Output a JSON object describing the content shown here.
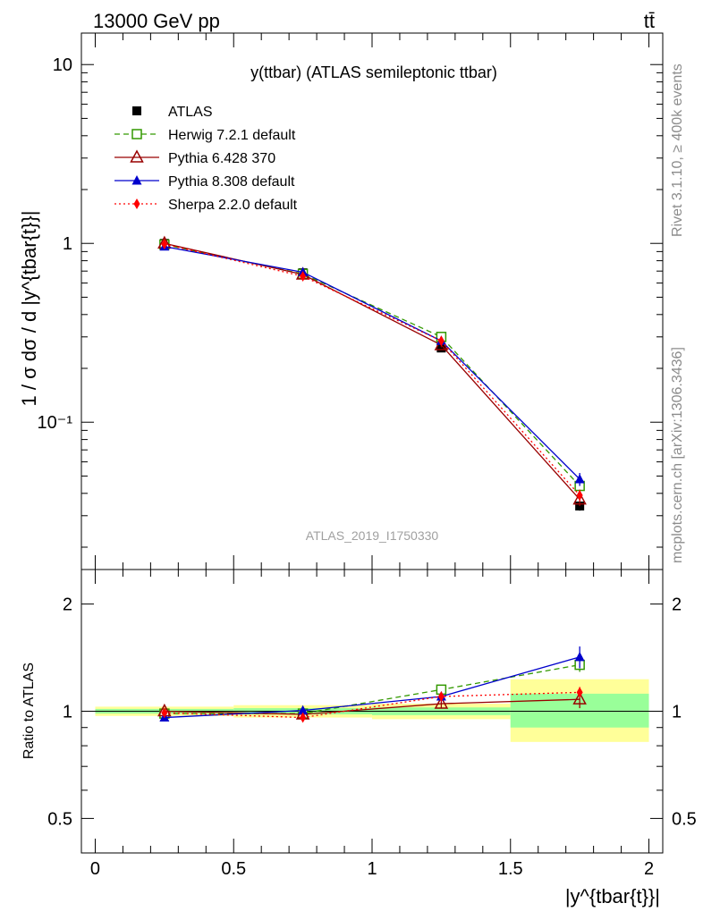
{
  "header": {
    "energy": "13000 GeV pp",
    "process": "tt̄"
  },
  "side": {
    "rivet": "Rivet 3.1.10, ≥ 400k events",
    "mcplots": "mcplots.cern.ch [arXiv:1306.3436]"
  },
  "chart_data": [
    {
      "type": "line",
      "title": "y(ttbar) (ATLAS semileptonic ttbar)",
      "ylabel": "1 / σ dσ / d |y^{tbar{t}}|",
      "xlabel": "|y^{tbar{t}}|",
      "watermark": "ATLAS_2019_I1750330",
      "yscale": "log",
      "ylim": [
        0.015,
        15
      ],
      "xlim": [
        -0.05,
        2.05
      ],
      "y_ticks": [
        {
          "value": 10,
          "label": "10"
        },
        {
          "value": 1,
          "label": "1"
        },
        {
          "value": 0.1,
          "label": "10⁻¹"
        }
      ],
      "x": [
        0.25,
        0.75,
        1.25,
        1.75
      ],
      "series": [
        {
          "name": "ATLAS",
          "color": "#000000",
          "style": "solid",
          "marker": "square-filled",
          "values": [
            1.0,
            0.685,
            0.26,
            0.034
          ],
          "errors": [
            0.03,
            0.02,
            0.012,
            0.002
          ]
        },
        {
          "name": "Herwig 7.2.1 default",
          "color": "#339900",
          "style": "dashed",
          "marker": "square-open",
          "values": [
            0.985,
            0.675,
            0.3,
            0.044
          ],
          "errors": [
            0.01,
            0.01,
            0.008,
            0.003
          ]
        },
        {
          "name": "Pythia 6.428 370",
          "color": "#990000",
          "style": "solid",
          "marker": "triangle-open",
          "values": [
            1.0,
            0.67,
            0.27,
            0.037
          ],
          "errors": [
            0.01,
            0.01,
            0.008,
            0.003
          ]
        },
        {
          "name": "Pythia 8.308 default",
          "color": "#0000cc",
          "style": "solid",
          "marker": "triangle-filled",
          "values": [
            0.96,
            0.69,
            0.285,
            0.048
          ],
          "errors": [
            0.01,
            0.01,
            0.008,
            0.004
          ]
        },
        {
          "name": "Sherpa 2.2.0 default",
          "color": "#ff0000",
          "style": "dotted",
          "marker": "diamond-filled",
          "values": [
            0.99,
            0.655,
            0.285,
            0.039
          ],
          "errors": [
            0.01,
            0.01,
            0.008,
            0.003
          ]
        }
      ]
    },
    {
      "type": "line",
      "ylabel": "Ratio to ATLAS",
      "xlabel": "|y^{tbar{t}}|",
      "yscale": "log",
      "ylim": [
        0.4,
        2.5
      ],
      "xlim": [
        -0.05,
        2.05
      ],
      "y_ticks": [
        {
          "value": 2,
          "label": "2"
        },
        {
          "value": 1,
          "label": "1"
        },
        {
          "value": 0.5,
          "label": "0.5"
        }
      ],
      "x_ticks": [
        {
          "value": 0,
          "label": "0"
        },
        {
          "value": 0.5,
          "label": "0.5"
        },
        {
          "value": 1,
          "label": "1"
        },
        {
          "value": 1.5,
          "label": "1.5"
        },
        {
          "value": 2,
          "label": "2"
        }
      ],
      "x": [
        0.25,
        0.75,
        1.25,
        1.75
      ],
      "bands": [
        {
          "x0": 0,
          "x1": 0.5,
          "stat": [
            0.985,
            1.015
          ],
          "total": [
            0.97,
            1.03
          ]
        },
        {
          "x0": 0.5,
          "x1": 1.0,
          "stat": [
            0.98,
            1.02
          ],
          "total": [
            0.96,
            1.04
          ]
        },
        {
          "x0": 1.0,
          "x1": 1.5,
          "stat": [
            0.975,
            1.025
          ],
          "total": [
            0.95,
            1.05
          ]
        },
        {
          "x0": 1.5,
          "x1": 2.0,
          "stat": [
            0.9,
            1.12
          ],
          "total": [
            0.82,
            1.23
          ]
        }
      ],
      "series": [
        {
          "name": "Herwig 7.2.1 default",
          "color": "#339900",
          "style": "dashed",
          "marker": "square-open",
          "values": [
            0.985,
            0.985,
            1.15,
            1.35
          ],
          "errors": [
            0.01,
            0.015,
            0.03,
            0.06
          ]
        },
        {
          "name": "Pythia 6.428 370",
          "color": "#990000",
          "style": "solid",
          "marker": "triangle-open",
          "values": [
            1.0,
            0.98,
            1.05,
            1.08
          ],
          "errors": [
            0.01,
            0.015,
            0.03,
            0.06
          ]
        },
        {
          "name": "Pythia 8.308 default",
          "color": "#0000cc",
          "style": "solid",
          "marker": "triangle-filled",
          "values": [
            0.96,
            1.005,
            1.1,
            1.42
          ],
          "errors": [
            0.01,
            0.015,
            0.03,
            0.1
          ]
        },
        {
          "name": "Sherpa 2.2.0 default",
          "color": "#ff0000",
          "style": "dotted",
          "marker": "diamond-filled",
          "values": [
            0.99,
            0.96,
            1.1,
            1.13
          ],
          "errors": [
            0.01,
            0.02,
            0.03,
            0.04
          ]
        }
      ]
    }
  ]
}
